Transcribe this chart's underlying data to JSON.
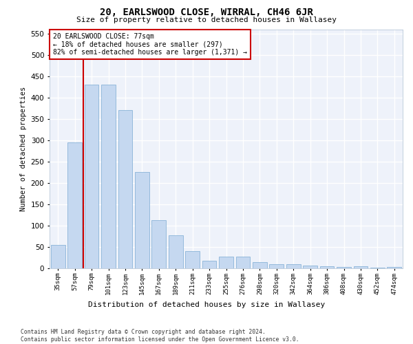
{
  "title": "20, EARLSWOOD CLOSE, WIRRAL, CH46 6JR",
  "subtitle": "Size of property relative to detached houses in Wallasey",
  "xlabel": "Distribution of detached houses by size in Wallasey",
  "ylabel": "Number of detached properties",
  "footer_line1": "Contains HM Land Registry data © Crown copyright and database right 2024.",
  "footer_line2": "Contains public sector information licensed under the Open Government Licence v3.0.",
  "categories": [
    "35sqm",
    "57sqm",
    "79sqm",
    "101sqm",
    "123sqm",
    "145sqm",
    "167sqm",
    "189sqm",
    "211sqm",
    "233sqm",
    "255sqm",
    "276sqm",
    "298sqm",
    "320sqm",
    "342sqm",
    "364sqm",
    "386sqm",
    "408sqm",
    "430sqm",
    "452sqm",
    "474sqm"
  ],
  "values": [
    55,
    295,
    430,
    430,
    370,
    225,
    113,
    77,
    40,
    17,
    27,
    27,
    15,
    10,
    10,
    7,
    5,
    4,
    5,
    2,
    4
  ],
  "bar_color": "#c5d8f0",
  "bar_edge_color": "#8ab4d8",
  "background_color": "#ffffff",
  "plot_bg_color": "#eef2fa",
  "grid_color": "#ffffff",
  "vline_color": "#cc0000",
  "vline_x": 1.5,
  "annotation_text": "20 EARLSWOOD CLOSE: 77sqm\n← 18% of detached houses are smaller (297)\n82% of semi-detached houses are larger (1,371) →",
  "ylim_max": 560,
  "yticks": [
    0,
    50,
    100,
    150,
    200,
    250,
    300,
    350,
    400,
    450,
    500,
    550
  ]
}
